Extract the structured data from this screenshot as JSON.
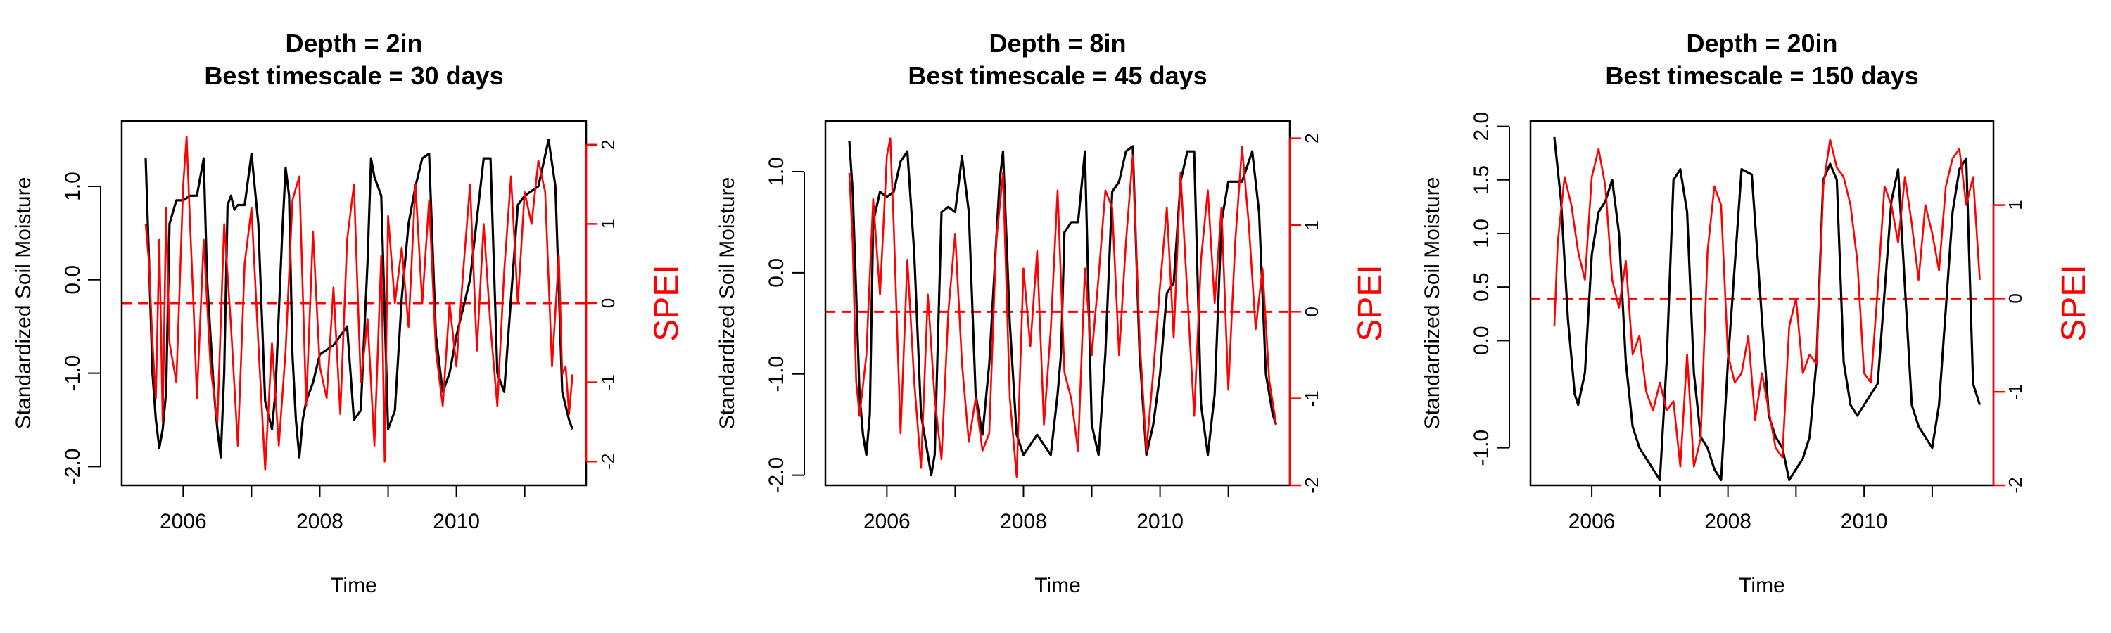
{
  "colors": {
    "soil": "#000000",
    "spei": "#ff0000"
  },
  "chart_data": [
    {
      "type": "line",
      "title": [
        "Depth = 2in",
        "Best timescale = 30 days"
      ],
      "xlabel": "Time",
      "ylabel": "Standardized Soil Moisture",
      "y2label": "SPEI",
      "xlim": [
        2005.1,
        2011.9
      ],
      "xticks": [
        "2006",
        "2008",
        "2010"
      ],
      "ylim": [
        -2.2,
        1.7
      ],
      "yticks": [
        "-2.0",
        "-1.0",
        "0.0",
        "1.0"
      ],
      "y2lim": [
        -2.3,
        2.3
      ],
      "y2ticks": [
        "-2",
        "-1",
        "0",
        "1",
        "2"
      ],
      "y2ref": 0,
      "series": [
        {
          "axis": "left",
          "x": [
            2005.45,
            2005.5,
            2005.55,
            2005.6,
            2005.65,
            2005.7,
            2005.75,
            2005.8,
            2005.9,
            2006.0,
            2006.1,
            2006.2,
            2006.3,
            2006.35,
            2006.45,
            2006.5,
            2006.55,
            2006.6,
            2006.65,
            2006.7,
            2006.75,
            2006.8,
            2006.9,
            2007.0,
            2007.1,
            2007.2,
            2007.3,
            2007.35,
            2007.45,
            2007.5,
            2007.55,
            2007.6,
            2007.65,
            2007.7,
            2007.75,
            2007.8,
            2007.85,
            2007.9,
            2008.0,
            2008.2,
            2008.4,
            2008.5,
            2008.6,
            2008.7,
            2008.75,
            2008.8,
            2008.9,
            2009.0,
            2009.1,
            2009.2,
            2009.3,
            2009.4,
            2009.5,
            2009.6,
            2009.7,
            2009.8,
            2009.9,
            2010.0,
            2010.2,
            2010.4,
            2010.5,
            2010.6,
            2010.7,
            2010.8,
            2010.9,
            2011.0,
            2011.2,
            2011.35,
            2011.45,
            2011.55,
            2011.65,
            2011.7
          ],
          "y": [
            1.3,
            0.2,
            -1.0,
            -1.5,
            -1.8,
            -1.6,
            -1.2,
            0.6,
            0.85,
            0.85,
            0.9,
            0.9,
            1.3,
            0.0,
            -1.2,
            -1.6,
            -1.9,
            -1.0,
            0.8,
            0.9,
            0.75,
            0.8,
            0.8,
            1.35,
            0.6,
            -1.3,
            -1.6,
            -1.2,
            0.5,
            1.2,
            0.9,
            -0.8,
            -1.5,
            -1.9,
            -1.5,
            -1.3,
            -1.2,
            -1.1,
            -0.8,
            -0.7,
            -0.5,
            -1.5,
            -1.4,
            0.2,
            1.3,
            1.1,
            0.9,
            -1.6,
            -1.4,
            -0.2,
            0.6,
            1.0,
            1.3,
            1.35,
            -0.6,
            -1.2,
            -1.0,
            -0.6,
            0.0,
            1.3,
            1.3,
            -1.0,
            -1.2,
            -0.2,
            0.8,
            0.9,
            1.0,
            1.5,
            1.0,
            -1.2,
            -1.5,
            -1.6
          ]
        },
        {
          "axis": "right",
          "x": [
            2005.45,
            2005.5,
            2005.55,
            2005.6,
            2005.65,
            2005.7,
            2005.75,
            2005.8,
            2005.9,
            2006.0,
            2006.05,
            2006.1,
            2006.15,
            2006.2,
            2006.3,
            2006.4,
            2006.5,
            2006.6,
            2006.7,
            2006.8,
            2006.9,
            2007.0,
            2007.1,
            2007.2,
            2007.3,
            2007.4,
            2007.5,
            2007.6,
            2007.7,
            2007.8,
            2007.9,
            2008.0,
            2008.1,
            2008.2,
            2008.3,
            2008.4,
            2008.5,
            2008.6,
            2008.7,
            2008.8,
            2008.9,
            2008.95,
            2009.0,
            2009.1,
            2009.2,
            2009.3,
            2009.4,
            2009.5,
            2009.6,
            2009.7,
            2009.8,
            2009.9,
            2010.0,
            2010.1,
            2010.2,
            2010.3,
            2010.4,
            2010.5,
            2010.6,
            2010.7,
            2010.8,
            2010.9,
            2011.0,
            2011.1,
            2011.2,
            2011.3,
            2011.4,
            2011.5,
            2011.55,
            2011.6,
            2011.65,
            2011.7
          ],
          "y": [
            1.0,
            0.5,
            -0.5,
            -1.2,
            0.8,
            -1.5,
            1.2,
            -0.5,
            -1.0,
            1.5,
            2.1,
            1.0,
            0.0,
            -1.2,
            0.8,
            -0.8,
            -1.5,
            1.0,
            -0.3,
            -1.8,
            0.5,
            1.2,
            -0.5,
            -2.1,
            -0.5,
            -1.8,
            -0.6,
            1.3,
            1.6,
            -1.3,
            0.9,
            -0.8,
            -1.2,
            0.2,
            -1.4,
            0.8,
            1.5,
            -1.0,
            -0.2,
            -1.8,
            0.6,
            -2.0,
            1.1,
            0.0,
            0.7,
            -0.3,
            1.5,
            0.0,
            1.3,
            -0.6,
            -1.3,
            0.0,
            -0.8,
            0.4,
            1.5,
            -0.6,
            1.0,
            -0.3,
            -1.3,
            0.4,
            1.6,
            0.0,
            1.4,
            1.0,
            1.8,
            1.4,
            -0.8,
            0.6,
            -0.9,
            -0.8,
            -1.4,
            -0.9
          ]
        }
      ]
    },
    {
      "type": "line",
      "title": [
        "Depth = 8in",
        "Best timescale = 45 days"
      ],
      "xlabel": "Time",
      "ylabel": "Standardized Soil Moisture",
      "y2label": "SPEI",
      "xlim": [
        2005.1,
        2011.9
      ],
      "xticks": [
        "2006",
        "2008",
        "2010"
      ],
      "ylim": [
        -2.1,
        1.5
      ],
      "yticks": [
        "-2.0",
        "-1.0",
        "0.0",
        "1.0"
      ],
      "y2lim": [
        -2.0,
        2.2
      ],
      "y2ticks": [
        "-2",
        "-1",
        "0",
        "1",
        "2"
      ],
      "y2ref": 0,
      "series": [
        {
          "axis": "left",
          "x": [
            2005.45,
            2005.5,
            2005.55,
            2005.6,
            2005.65,
            2005.7,
            2005.75,
            2005.8,
            2005.9,
            2006.0,
            2006.1,
            2006.2,
            2006.3,
            2006.4,
            2006.5,
            2006.6,
            2006.65,
            2006.7,
            2006.8,
            2006.9,
            2007.0,
            2007.1,
            2007.2,
            2007.3,
            2007.4,
            2007.5,
            2007.6,
            2007.65,
            2007.7,
            2007.8,
            2007.9,
            2008.0,
            2008.2,
            2008.4,
            2008.5,
            2008.55,
            2008.6,
            2008.7,
            2008.8,
            2008.9,
            2009.0,
            2009.1,
            2009.2,
            2009.3,
            2009.4,
            2009.5,
            2009.6,
            2009.7,
            2009.8,
            2009.9,
            2010.0,
            2010.1,
            2010.2,
            2010.3,
            2010.4,
            2010.5,
            2010.6,
            2010.7,
            2010.8,
            2010.9,
            2011.0,
            2011.2,
            2011.35,
            2011.45,
            2011.55,
            2011.65,
            2011.7
          ],
          "y": [
            1.3,
            0.8,
            -0.2,
            -1.2,
            -1.6,
            -1.8,
            -1.4,
            0.5,
            0.8,
            0.75,
            0.8,
            1.1,
            1.2,
            0.2,
            -1.4,
            -1.8,
            -2.0,
            -1.8,
            0.6,
            0.65,
            0.6,
            1.15,
            0.6,
            -1.2,
            -1.6,
            -0.9,
            0.3,
            0.9,
            1.2,
            -0.5,
            -1.6,
            -1.8,
            -1.6,
            -1.8,
            -1.2,
            -0.8,
            0.4,
            0.5,
            0.5,
            1.2,
            -1.5,
            -1.8,
            -0.8,
            0.8,
            0.9,
            1.2,
            1.25,
            -0.8,
            -1.8,
            -1.5,
            -1.0,
            -0.2,
            -0.1,
            0.9,
            1.2,
            1.2,
            -1.3,
            -1.8,
            -1.2,
            0.5,
            0.9,
            0.9,
            1.2,
            0.6,
            -1.0,
            -1.4,
            -1.5
          ]
        },
        {
          "axis": "right",
          "x": [
            2005.45,
            2005.5,
            2005.55,
            2005.6,
            2005.7,
            2005.8,
            2005.9,
            2006.0,
            2006.05,
            2006.1,
            2006.2,
            2006.3,
            2006.4,
            2006.5,
            2006.6,
            2006.7,
            2006.8,
            2006.9,
            2007.0,
            2007.1,
            2007.2,
            2007.3,
            2007.4,
            2007.5,
            2007.6,
            2007.7,
            2007.8,
            2007.9,
            2008.0,
            2008.1,
            2008.2,
            2008.3,
            2008.4,
            2008.5,
            2008.6,
            2008.7,
            2008.8,
            2008.9,
            2009.0,
            2009.1,
            2009.2,
            2009.3,
            2009.4,
            2009.5,
            2009.6,
            2009.7,
            2009.8,
            2009.9,
            2010.0,
            2010.1,
            2010.2,
            2010.3,
            2010.4,
            2010.5,
            2010.6,
            2010.7,
            2010.8,
            2010.9,
            2011.0,
            2011.1,
            2011.2,
            2011.3,
            2011.4,
            2011.5,
            2011.6,
            2011.7
          ],
          "y": [
            1.6,
            0.8,
            -0.8,
            -1.2,
            -0.5,
            1.3,
            0.2,
            1.8,
            2.0,
            1.0,
            -1.4,
            0.6,
            -0.8,
            -1.8,
            0.2,
            -1.0,
            -1.7,
            0.0,
            0.9,
            -0.6,
            -1.5,
            -1.0,
            -1.6,
            -1.4,
            0.8,
            1.6,
            -1.0,
            -1.9,
            0.5,
            -0.4,
            0.7,
            -1.3,
            -0.2,
            1.4,
            -0.7,
            -1.0,
            -1.6,
            0.5,
            -0.5,
            0.4,
            1.4,
            1.2,
            -0.5,
            0.8,
            1.8,
            -0.3,
            -1.6,
            -0.7,
            0.3,
            1.2,
            -0.3,
            1.6,
            0.2,
            -1.2,
            0.6,
            1.4,
            0.1,
            1.2,
            -0.9,
            0.8,
            1.9,
            1.0,
            -0.2,
            0.5,
            -0.8,
            -1.3
          ]
        }
      ]
    },
    {
      "type": "line",
      "title": [
        "Depth = 20in",
        "Best timescale = 150 days"
      ],
      "xlabel": "Time",
      "ylabel": "Standardized Soil Moisture",
      "y2label": "SPEI",
      "xlim": [
        2005.1,
        2011.9
      ],
      "xticks": [
        "2006",
        "2008",
        "2010"
      ],
      "ylim": [
        -1.35,
        2.05
      ],
      "yticks": [
        "-1.0",
        "0.0",
        "0.5",
        "1.0",
        "1.5",
        "2.0"
      ],
      "y2lim": [
        -2.0,
        1.9
      ],
      "y2ticks": [
        "-2",
        "-1",
        "0",
        "1"
      ],
      "y2ref": 0,
      "series": [
        {
          "axis": "left",
          "x": [
            2005.45,
            2005.55,
            2005.65,
            2005.75,
            2005.8,
            2005.9,
            2006.0,
            2006.1,
            2006.2,
            2006.3,
            2006.4,
            2006.5,
            2006.6,
            2006.7,
            2006.8,
            2006.9,
            2007.0,
            2007.1,
            2007.2,
            2007.3,
            2007.4,
            2007.5,
            2007.6,
            2007.7,
            2007.8,
            2007.9,
            2008.0,
            2008.2,
            2008.35,
            2008.5,
            2008.6,
            2008.7,
            2008.8,
            2008.9,
            2009.0,
            2009.1,
            2009.2,
            2009.3,
            2009.4,
            2009.5,
            2009.6,
            2009.7,
            2009.8,
            2009.9,
            2010.0,
            2010.2,
            2010.4,
            2010.5,
            2010.6,
            2010.7,
            2010.8,
            2010.9,
            2011.0,
            2011.1,
            2011.2,
            2011.3,
            2011.4,
            2011.5,
            2011.6,
            2011.7
          ],
          "y": [
            1.9,
            1.3,
            0.2,
            -0.5,
            -0.6,
            -0.3,
            0.8,
            1.2,
            1.3,
            1.5,
            1.0,
            -0.2,
            -0.8,
            -1.0,
            -1.1,
            -1.2,
            -1.3,
            -0.2,
            1.5,
            1.6,
            1.2,
            -0.3,
            -0.9,
            -1.0,
            -1.2,
            -1.3,
            -0.2,
            1.6,
            1.55,
            0.2,
            -0.7,
            -0.9,
            -1.0,
            -1.3,
            -1.2,
            -1.1,
            -0.9,
            -0.2,
            1.5,
            1.65,
            1.5,
            -0.2,
            -0.6,
            -0.7,
            -0.6,
            -0.4,
            1.3,
            1.6,
            0.5,
            -0.6,
            -0.8,
            -0.9,
            -1.0,
            -0.6,
            0.3,
            1.2,
            1.6,
            1.7,
            -0.4,
            -0.6
          ]
        },
        {
          "axis": "right",
          "x": [
            2005.45,
            2005.5,
            2005.6,
            2005.7,
            2005.8,
            2005.9,
            2006.0,
            2006.1,
            2006.2,
            2006.3,
            2006.4,
            2006.5,
            2006.6,
            2006.7,
            2006.8,
            2006.9,
            2007.0,
            2007.1,
            2007.2,
            2007.3,
            2007.4,
            2007.5,
            2007.6,
            2007.7,
            2007.8,
            2007.9,
            2008.0,
            2008.1,
            2008.2,
            2008.3,
            2008.4,
            2008.5,
            2008.6,
            2008.7,
            2008.8,
            2008.9,
            2009.0,
            2009.1,
            2009.2,
            2009.3,
            2009.4,
            2009.5,
            2009.6,
            2009.7,
            2009.8,
            2009.9,
            2010.0,
            2010.1,
            2010.2,
            2010.3,
            2010.4,
            2010.5,
            2010.6,
            2010.7,
            2010.8,
            2010.9,
            2011.0,
            2011.1,
            2011.2,
            2011.3,
            2011.4,
            2011.5,
            2011.6,
            2011.7
          ],
          "y": [
            -0.3,
            0.6,
            1.3,
            1.0,
            0.5,
            0.2,
            1.3,
            1.6,
            1.2,
            0.2,
            -0.1,
            0.4,
            -0.6,
            -0.4,
            -1.0,
            -1.2,
            -0.9,
            -1.2,
            -1.1,
            -1.8,
            -0.6,
            -1.8,
            -1.5,
            0.5,
            1.2,
            1.0,
            -0.6,
            -0.9,
            -0.8,
            -0.4,
            -1.3,
            -0.8,
            -1.2,
            -1.6,
            -1.7,
            -0.3,
            0.0,
            -0.8,
            -0.6,
            -0.7,
            1.2,
            1.7,
            1.4,
            1.3,
            1.0,
            0.4,
            -0.8,
            -0.9,
            0.1,
            1.2,
            1.0,
            0.6,
            1.3,
            0.8,
            0.2,
            1.0,
            0.7,
            0.3,
            1.2,
            1.5,
            1.6,
            1.0,
            1.3,
            0.2
          ]
        }
      ]
    }
  ]
}
